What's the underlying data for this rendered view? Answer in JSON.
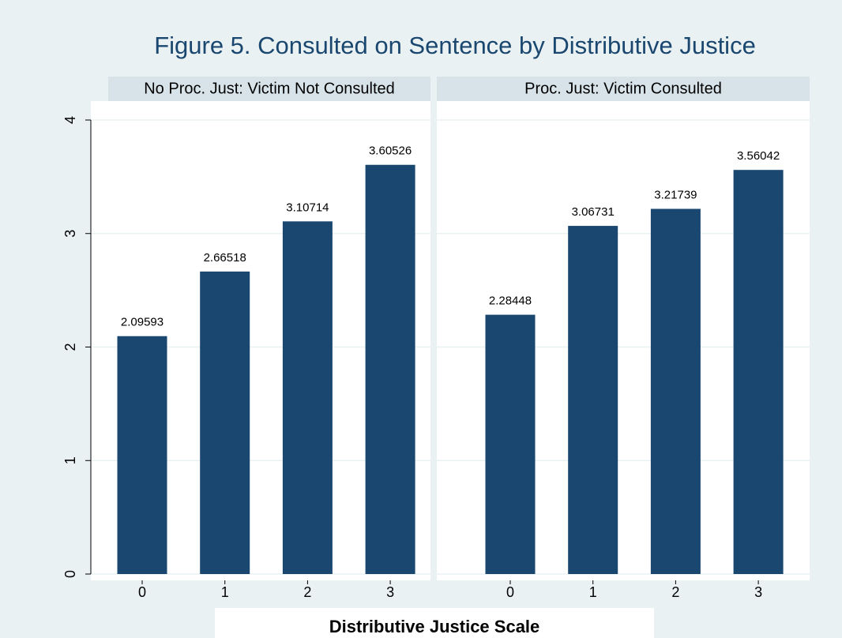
{
  "chart_data": {
    "type": "bar",
    "title": "Figure 5. Consulted on Sentence by Distributive Justice",
    "x_label": "Distributive Justice Scale",
    "color": "#1a476f",
    "grid": true,
    "ylim": [
      0,
      4
    ],
    "yticks": [
      0,
      1,
      2,
      3,
      4
    ],
    "panels": [
      {
        "title": "No Proc. Just: Victim Not Consulted",
        "categories": [
          "0",
          "1",
          "2",
          "3"
        ],
        "values": [
          2.09593,
          2.66518,
          3.10714,
          3.60526
        ]
      },
      {
        "title": "Proc. Just: Victim Consulted",
        "categories": [
          "0",
          "1",
          "2",
          "3"
        ],
        "values": [
          2.28448,
          3.06731,
          3.21739,
          3.56042
        ]
      }
    ]
  }
}
